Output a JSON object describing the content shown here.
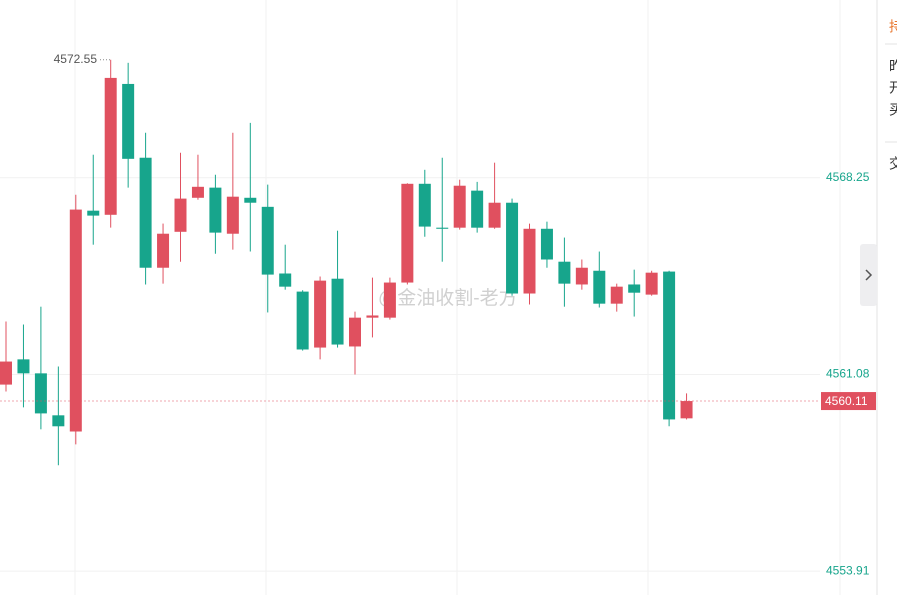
{
  "chart_data": {
    "type": "candlestick",
    "up_color": "#e0505f",
    "down_color": "#17a58c",
    "open": [
      4560.71,
      4561.63,
      4561.12,
      4559.59,
      4559.0,
      4567.05,
      4566.9,
      4571.67,
      4568.98,
      4564.97,
      4566.28,
      4567.52,
      4567.89,
      4566.21,
      4567.52,
      4567.19,
      4564.76,
      4564.1,
      4562.06,
      4564.57,
      4562.1,
      4563.15,
      4563.15,
      4564.43,
      4568.03,
      4566.43,
      4566.43,
      4567.78,
      4566.43,
      4567.34,
      4564.03,
      4566.39,
      4565.19,
      4564.36,
      4564.86,
      4563.66,
      4564.36,
      4563.99,
      4564.83,
      4559.48
    ],
    "high": [
      4563.01,
      4562.9,
      4563.55,
      4561.37,
      4567.63,
      4569.09,
      4572.55,
      4572.44,
      4569.89,
      4566.58,
      4569.16,
      4569.09,
      4568.36,
      4569.89,
      4570.25,
      4568.0,
      4565.81,
      4564.15,
      4564.65,
      4566.32,
      4563.37,
      4564.61,
      4564.61,
      4568.05,
      4568.54,
      4568.98,
      4568.18,
      4568.1,
      4568.8,
      4567.49,
      4566.58,
      4566.65,
      4566.07,
      4565.27,
      4565.56,
      4564.39,
      4564.9,
      4564.86,
      4564.86,
      4560.39
    ],
    "low": [
      4560.46,
      4559.88,
      4559.08,
      4557.77,
      4558.53,
      4565.81,
      4566.43,
      4567.89,
      4564.36,
      4564.39,
      4565.19,
      4567.45,
      4565.48,
      4565.63,
      4565.56,
      4563.34,
      4564.17,
      4561.95,
      4561.63,
      4562.06,
      4561.08,
      4562.43,
      4563.08,
      4564.36,
      4566.1,
      4565.19,
      4566.36,
      4566.25,
      4566.39,
      4563.95,
      4563.63,
      4564.97,
      4563.55,
      4564.17,
      4563.52,
      4563.37,
      4563.19,
      4563.95,
      4559.19,
      4559.44
    ],
    "close": [
      4561.55,
      4561.12,
      4559.66,
      4559.19,
      4567.09,
      4566.87,
      4571.89,
      4568.94,
      4564.97,
      4566.21,
      4567.49,
      4567.92,
      4566.25,
      4567.56,
      4567.34,
      4564.72,
      4564.28,
      4561.99,
      4564.5,
      4562.17,
      4563.15,
      4563.23,
      4564.43,
      4568.03,
      4566.47,
      4566.39,
      4567.96,
      4566.43,
      4567.34,
      4564.03,
      4566.39,
      4565.27,
      4564.39,
      4564.97,
      4563.66,
      4564.28,
      4564.06,
      4564.79,
      4559.44,
      4560.11
    ],
    "ylim": [
      4553.04,
      4574.73
    ],
    "yticks": [
      4553.91,
      4561.08,
      4568.25
    ],
    "grid": true,
    "high_marker": 4572.55,
    "last_price": 4560.11,
    "last_price_color": "#e0505f",
    "watermark": "@金油收割-老方",
    "side_panel": [
      "持",
      "昨",
      "开",
      "买",
      "交"
    ]
  }
}
